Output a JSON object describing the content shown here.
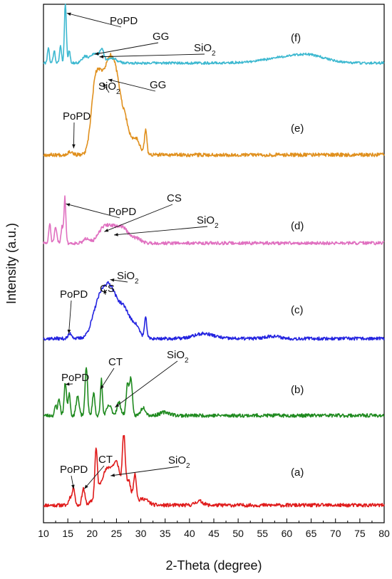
{
  "chart_data": {
    "type": "line",
    "title": "",
    "xlabel": "2-Theta (degree)",
    "ylabel": "Intensity (a.u.)",
    "xlim": [
      10,
      80
    ],
    "xticks": [
      10,
      15,
      20,
      25,
      30,
      35,
      40,
      45,
      50,
      55,
      60,
      65,
      70,
      75,
      80
    ],
    "grid": false,
    "legend": "none",
    "series": [
      {
        "key": "a",
        "name": "(a)",
        "color": "#e01b1b",
        "baseline": 0.02,
        "seed": 11,
        "noise": 0.022,
        "peaks": [
          [
            15.5,
            0.05,
            0.3
          ],
          [
            16.2,
            0.11,
            0.25
          ],
          [
            18.2,
            0.1,
            0.3
          ],
          [
            20.8,
            0.28,
            0.25
          ],
          [
            22.5,
            0.1,
            1.5
          ],
          [
            24,
            0.16,
            1.5
          ],
          [
            25.2,
            0.12,
            0.6
          ],
          [
            26.5,
            0.36,
            0.3
          ],
          [
            27.5,
            0.14,
            0.5
          ],
          [
            28.8,
            0.18,
            0.3
          ],
          [
            30.5,
            0.04,
            1.0
          ],
          [
            42,
            0.025,
            0.8
          ]
        ],
        "annotations": [
          {
            "text": "PoPD",
            "sub": "",
            "point": [
              16.2,
              0.12
            ]
          },
          {
            "text": "CT",
            "sub": "",
            "point": [
              18.4,
              0.12
            ]
          },
          {
            "text": "SiO",
            "sub": "2",
            "point": [
              23.8,
              0.2
            ]
          }
        ]
      },
      {
        "key": "b",
        "name": "(b)",
        "color": "#1f8a1f",
        "baseline": 0.02,
        "seed": 23,
        "noise": 0.022,
        "peaks": [
          [
            12.5,
            0.06,
            0.2
          ],
          [
            13.2,
            0.1,
            0.25
          ],
          [
            14.5,
            0.2,
            0.25
          ],
          [
            15.3,
            0.14,
            0.2
          ],
          [
            17,
            0.12,
            0.3
          ],
          [
            18.8,
            0.3,
            0.25
          ],
          [
            20.3,
            0.14,
            0.25
          ],
          [
            21.9,
            0.22,
            0.2
          ],
          [
            23.5,
            0.06,
            0.5
          ],
          [
            25.5,
            0.08,
            0.4
          ],
          [
            27.3,
            0.2,
            0.3
          ],
          [
            28,
            0.22,
            0.25
          ],
          [
            30.5,
            0.05,
            0.5
          ],
          [
            35,
            0.02,
            1.0
          ]
        ],
        "annotations": [
          {
            "text": "PoPD",
            "sub": "",
            "point": [
              14.5,
              0.21
            ]
          },
          {
            "text": "CT",
            "sub": "",
            "point": [
              21.7,
              0.18
            ]
          },
          {
            "text": "SiO",
            "sub": "2",
            "point": [
              24.7,
              0.07
            ]
          }
        ]
      },
      {
        "key": "c",
        "name": "(c)",
        "color": "#2424e0",
        "baseline": 0.02,
        "seed": 37,
        "noise": 0.02,
        "peaks": [
          [
            15.5,
            0.03,
            0.4
          ],
          [
            21,
            0.12,
            1.2
          ],
          [
            23.5,
            0.32,
            1.7
          ],
          [
            26.8,
            0.14,
            1.1
          ],
          [
            29,
            0.07,
            0.8
          ],
          [
            31,
            0.12,
            0.25
          ],
          [
            43,
            0.03,
            2.0
          ],
          [
            57,
            0.015,
            1.5
          ]
        ],
        "annotations": [
          {
            "text": "PoPD",
            "sub": "",
            "point": [
              15.2,
              0.05
            ]
          },
          {
            "text": "CS",
            "sub": "",
            "point": [
              22.5,
              0.32
            ]
          },
          {
            "text": "SiO",
            "sub": "2",
            "point": [
              23.7,
              0.38
            ]
          }
        ]
      },
      {
        "key": "d",
        "name": "(d)",
        "color": "#e070c0",
        "baseline": 0.02,
        "seed": 51,
        "noise": 0.02,
        "peaks": [
          [
            11.3,
            0.12,
            0.2
          ],
          [
            12.5,
            0.09,
            0.25
          ],
          [
            13.8,
            0.1,
            0.2
          ],
          [
            14.4,
            0.28,
            0.2
          ],
          [
            19,
            0.03,
            0.6
          ],
          [
            22,
            0.05,
            1.0
          ],
          [
            24,
            0.1,
            1.5
          ],
          [
            26.5,
            0.07,
            1.0
          ],
          [
            29,
            0.03,
            1.0
          ]
        ],
        "annotations": [
          {
            "text": "PoPD",
            "sub": "",
            "point": [
              14.6,
              0.26
            ]
          },
          {
            "text": "CS",
            "sub": "",
            "point": [
              22.5,
              0.09
            ]
          },
          {
            "text": "SiO",
            "sub": "2",
            "point": [
              24.5,
              0.07
            ]
          }
        ]
      },
      {
        "key": "e",
        "name": "(e)",
        "color": "#e0901e",
        "baseline": 0.02,
        "seed": 67,
        "noise": 0.022,
        "peaks": [
          [
            15.5,
            0.02,
            0.5
          ],
          [
            20.5,
            0.33,
            0.8
          ],
          [
            22,
            0.4,
            1.0
          ],
          [
            23.8,
            0.46,
            0.9
          ],
          [
            25.2,
            0.32,
            0.8
          ],
          [
            26.8,
            0.2,
            0.8
          ],
          [
            29,
            0.1,
            0.8
          ],
          [
            31,
            0.15,
            0.25
          ]
        ],
        "annotations": [
          {
            "text": "PoPD",
            "sub": "",
            "point": [
              16.2,
              0.06
            ]
          },
          {
            "text": "SiO",
            "sub": "2",
            "point": [
              22.2,
              0.46
            ]
          },
          {
            "text": "GG",
            "sub": "",
            "point": [
              23.3,
              0.48
            ]
          }
        ]
      },
      {
        "key": "f",
        "name": "(f)",
        "color": "#3cb8d0",
        "baseline": 0.02,
        "seed": 79,
        "noise": 0.02,
        "peaks": [
          [
            11,
            0.12,
            0.2
          ],
          [
            12.2,
            0.1,
            0.2
          ],
          [
            13.5,
            0.14,
            0.2
          ],
          [
            14.5,
            0.48,
            0.2
          ],
          [
            15.3,
            0.1,
            0.2
          ],
          [
            18.5,
            0.05,
            0.6
          ],
          [
            20.5,
            0.08,
            0.8
          ],
          [
            22,
            0.1,
            0.4
          ],
          [
            24,
            0.04,
            1.0
          ],
          [
            61,
            0.05,
            5.0
          ],
          [
            65,
            0.03,
            3.0
          ]
        ],
        "annotations": [
          {
            "text": "PoPD",
            "sub": "",
            "point": [
              14.8,
              0.42
            ]
          },
          {
            "text": "GG",
            "sub": "",
            "point": [
              20.5,
              0.09
            ]
          },
          {
            "text": "SiO",
            "sub": "2",
            "point": [
              21.5,
              0.07
            ]
          }
        ]
      }
    ]
  }
}
